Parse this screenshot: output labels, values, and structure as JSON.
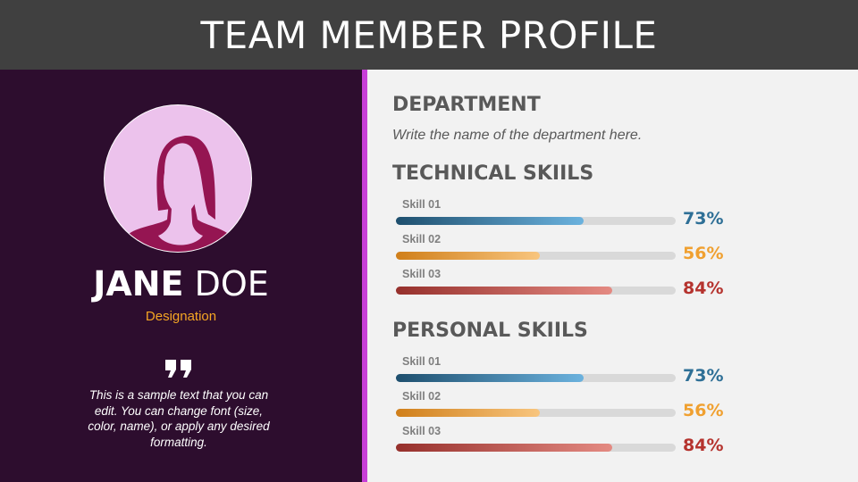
{
  "header": {
    "title": "TEAM MEMBER PROFILE"
  },
  "profile": {
    "first_name": "JANE",
    "last_name": "DOE",
    "designation": "Designation",
    "quote_icon": "quote-icon",
    "blurb": "This is a sample text that you can edit. You can change font (size, color, name), or apply any desired formatting."
  },
  "department": {
    "heading": "DEPARTMENT",
    "text": "Write the name of the department here."
  },
  "technical": {
    "heading": "TECHNICAL SKIILS",
    "skills": [
      {
        "label": "Skill 01",
        "value": 73,
        "display": "73%",
        "color": "#2e6f96",
        "from": "#1e4f6e",
        "to": "#6bb2de"
      },
      {
        "label": "Skill 02",
        "value": 56,
        "display": "56%",
        "color": "#f0a030",
        "from": "#d07f1a",
        "to": "#f8c57e"
      },
      {
        "label": "Skill 03",
        "value": 84,
        "display": "84%",
        "color": "#b5332e",
        "from": "#96302c",
        "to": "#e48a82"
      }
    ]
  },
  "personal": {
    "heading": "PERSONAL SKIILS",
    "skills": [
      {
        "label": "Skill 01",
        "value": 73,
        "display": "73%",
        "color": "#2e6f96",
        "from": "#1e4f6e",
        "to": "#6bb2de"
      },
      {
        "label": "Skill 02",
        "value": 56,
        "display": "56%",
        "color": "#f0a030",
        "from": "#d07f1a",
        "to": "#f8c57e"
      },
      {
        "label": "Skill 03",
        "value": 84,
        "display": "84%",
        "color": "#b5332e",
        "from": "#96302c",
        "to": "#e48a82"
      }
    ]
  }
}
